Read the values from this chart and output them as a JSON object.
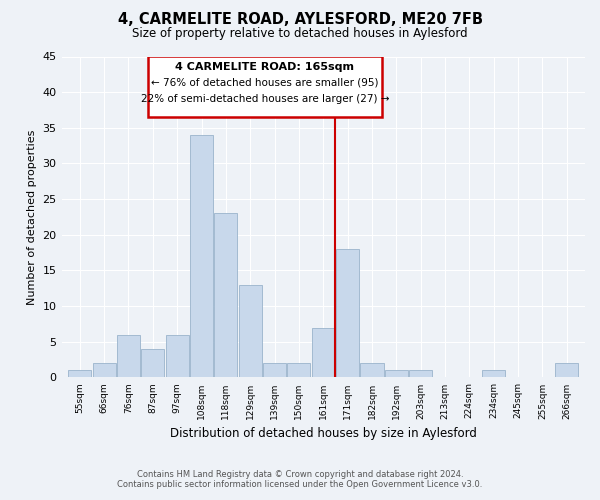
{
  "title": "4, CARMELITE ROAD, AYLESFORD, ME20 7FB",
  "subtitle": "Size of property relative to detached houses in Aylesford",
  "xlabel": "Distribution of detached houses by size in Aylesford",
  "ylabel": "Number of detached properties",
  "bin_labels": [
    "55sqm",
    "66sqm",
    "76sqm",
    "87sqm",
    "97sqm",
    "108sqm",
    "118sqm",
    "129sqm",
    "139sqm",
    "150sqm",
    "161sqm",
    "171sqm",
    "182sqm",
    "192sqm",
    "203sqm",
    "213sqm",
    "224sqm",
    "234sqm",
    "245sqm",
    "255sqm",
    "266sqm"
  ],
  "bar_heights": [
    1,
    2,
    6,
    4,
    6,
    34,
    23,
    13,
    2,
    2,
    7,
    18,
    2,
    1,
    1,
    0,
    0,
    1,
    0,
    0,
    2
  ],
  "bar_color": "#c8d8eb",
  "bar_edge_color": "#9ab4cc",
  "marker_color": "#cc0000",
  "ylim": [
    0,
    45
  ],
  "yticks": [
    0,
    5,
    10,
    15,
    20,
    25,
    30,
    35,
    40,
    45
  ],
  "annotation_title": "4 CARMELITE ROAD: 165sqm",
  "annotation_line1": "← 76% of detached houses are smaller (95)",
  "annotation_line2": "22% of semi-detached houses are larger (27) →",
  "footer_line1": "Contains HM Land Registry data © Crown copyright and database right 2024.",
  "footer_line2": "Contains public sector information licensed under the Open Government Licence v3.0.",
  "background_color": "#eef2f7",
  "plot_bg_color": "#eef2f7",
  "grid_color": "#ffffff"
}
